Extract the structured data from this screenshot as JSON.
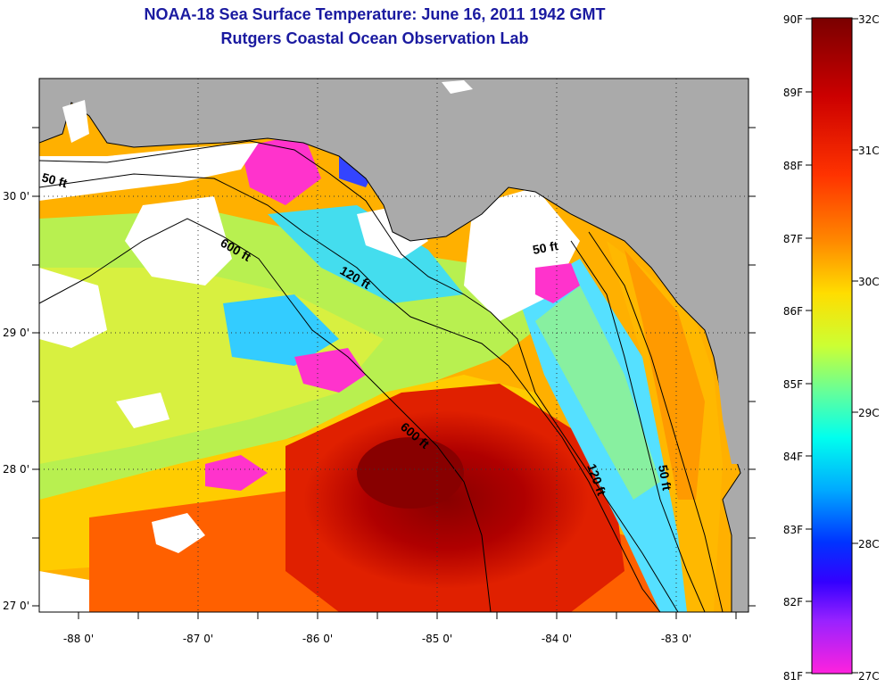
{
  "header": {
    "title_line1": "NOAA-18 Sea Surface Temperature:  June 16, 2011 1942 GMT",
    "title_line2": "Rutgers Coastal Ocean Observation Lab"
  },
  "map": {
    "lon_ticks": [
      "-88 0'",
      "-87 0'",
      "-86 0'",
      "-85 0'",
      "-84 0'",
      "-83 0'"
    ],
    "lat_ticks": [
      "30 0'",
      "29 0'",
      "28 0'",
      "27 0'"
    ],
    "contour_labels": [
      "50 ft",
      "600 ft",
      "120 ft",
      "50 ft",
      "600 ft",
      "120 ft",
      "50 ft"
    ],
    "colors": {
      "land": "#aaaaaa",
      "cloud": "#ffffff",
      "coast": "#000000"
    }
  },
  "colorbar": {
    "fahrenheit_labels": [
      "90F",
      "89F",
      "88F",
      "87F",
      "86F",
      "85F",
      "84F",
      "83F",
      "82F",
      "81F"
    ],
    "celsius_labels": [
      "32C",
      "31C",
      "30C",
      "29C",
      "28C",
      "27C"
    ],
    "colors": [
      "#7a0000",
      "#cc0000",
      "#ff3300",
      "#ff8800",
      "#ffdd00",
      "#ccff33",
      "#66ff99",
      "#00ffee",
      "#00aaff",
      "#0033ff",
      "#3300ff",
      "#9922ff",
      "#ff22dd"
    ]
  }
}
